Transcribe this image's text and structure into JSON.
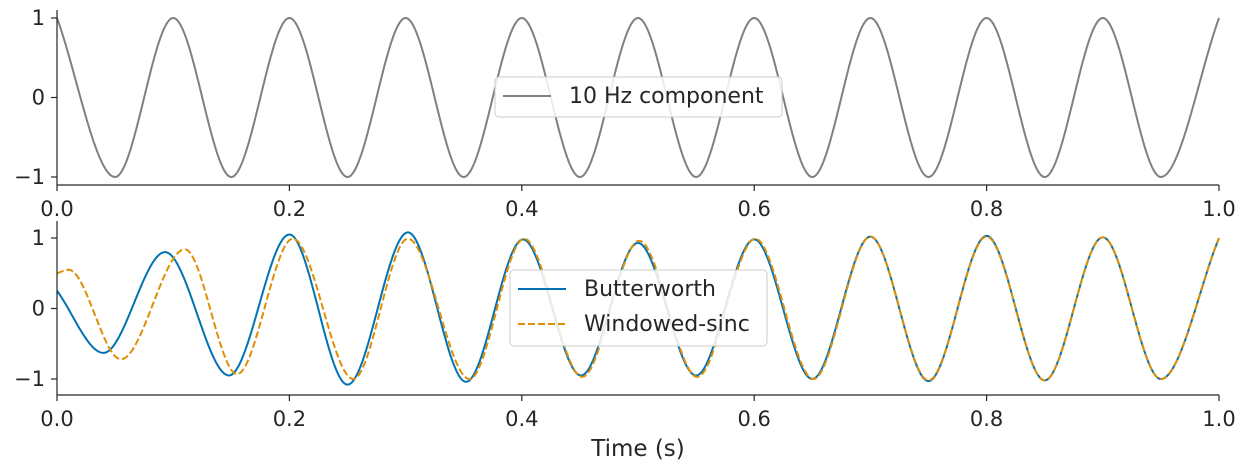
{
  "chart_data": [
    {
      "type": "line",
      "title": "",
      "xlabel": "",
      "ylabel": "",
      "xlim": [
        0.0,
        1.0
      ],
      "ylim": [
        -1.1,
        1.1
      ],
      "xticks": [
        "0.0",
        "0.2",
        "0.4",
        "0.6",
        "0.8",
        "1.0"
      ],
      "yticks": [
        "−1",
        "0",
        "1"
      ],
      "grid": false,
      "legend_position": "center",
      "series": [
        {
          "name": "10 Hz component",
          "color": "#808080",
          "style": "solid",
          "x": [
            0,
            0.05,
            0.1,
            0.15,
            0.2,
            0.25,
            0.3,
            0.35,
            0.4,
            0.45,
            0.5,
            0.55,
            0.6,
            0.65,
            0.7,
            0.75,
            0.8,
            0.85,
            0.9,
            0.95,
            1.0
          ],
          "y": [
            1,
            -1,
            1,
            -1,
            1,
            -1,
            1,
            -1,
            1,
            -1,
            1,
            -1,
            1,
            -1,
            1,
            -1,
            1,
            -1,
            1,
            -1,
            1
          ]
        }
      ]
    },
    {
      "type": "line",
      "title": "",
      "xlabel": "Time (s)",
      "ylabel": "",
      "xlim": [
        0.0,
        1.0
      ],
      "ylim": [
        -1.2,
        1.2
      ],
      "xticks": [
        "0.0",
        "0.2",
        "0.4",
        "0.6",
        "0.8",
        "1.0"
      ],
      "yticks": [
        "−1",
        "0",
        "1"
      ],
      "grid": false,
      "legend_position": "center",
      "series": [
        {
          "name": "Butterworth",
          "color": "#0173b2",
          "style": "solid",
          "x": [
            0,
            0.04,
            0.093,
            0.148,
            0.2,
            0.25,
            0.302,
            0.352,
            0.401,
            0.451,
            0.5,
            0.55,
            0.6,
            0.65,
            0.7,
            0.75,
            0.8,
            0.85,
            0.9,
            0.95,
            1.0
          ],
          "y": [
            0.25,
            -0.63,
            0.8,
            -0.95,
            1.05,
            -1.08,
            1.08,
            -1.04,
            0.98,
            -0.95,
            0.93,
            -0.95,
            0.98,
            -1.0,
            1.02,
            -1.03,
            1.03,
            -1.02,
            1.01,
            -1.0,
            1.0
          ]
        },
        {
          "name": "Windowed-sinc",
          "color": "#de8f05",
          "style": "dashed",
          "x": [
            0,
            0.01,
            0.055,
            0.11,
            0.155,
            0.203,
            0.255,
            0.302,
            0.355,
            0.402,
            0.452,
            0.501,
            0.551,
            0.601,
            0.651,
            0.7,
            0.75,
            0.8,
            0.85,
            0.9,
            0.95,
            1.0
          ],
          "y": [
            0.5,
            0.55,
            -0.72,
            0.84,
            -0.93,
            0.99,
            -1.0,
            0.99,
            -1.0,
            0.99,
            -0.97,
            0.96,
            -0.97,
            0.99,
            -1.0,
            1.02,
            -1.02,
            1.02,
            -1.02,
            1.01,
            -1.0,
            1.0
          ]
        }
      ]
    }
  ]
}
